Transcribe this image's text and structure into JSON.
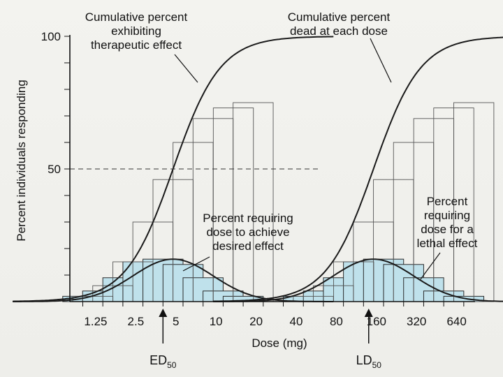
{
  "chart_data": {
    "type": "bar",
    "title": "",
    "xlabel": "Dose (mg)",
    "ylabel": "Percent individuals responding",
    "ylim": [
      0,
      100
    ],
    "yticks": [
      "50",
      "100"
    ],
    "x_ticks": [
      "1.25",
      "2.5",
      "5",
      "10",
      "20",
      "40",
      "80",
      "160",
      "320",
      "640"
    ],
    "x_scale": "log2",
    "grid": false,
    "reference_line": {
      "y": 50,
      "style": "dashed"
    },
    "bins": [
      {
        "dose": 1.0,
        "percent": 2
      },
      {
        "dose": 1.41,
        "percent": 4
      },
      {
        "dose": 2.0,
        "percent": 9
      },
      {
        "dose": 2.83,
        "percent": 15
      },
      {
        "dose": 4.0,
        "percent": 16
      },
      {
        "dose": 5.66,
        "percent": 14
      },
      {
        "dose": 8.0,
        "percent": 9
      },
      {
        "dose": 11.3,
        "percent": 4
      },
      {
        "dose": 16.0,
        "percent": 2
      },
      {
        "dose": 45.3,
        "percent": 2
      },
      {
        "dose": 64.0,
        "percent": 4
      },
      {
        "dose": 90.5,
        "percent": 9
      },
      {
        "dose": 128,
        "percent": 15
      },
      {
        "dose": 181,
        "percent": 16
      },
      {
        "dose": 256,
        "percent": 14
      },
      {
        "dose": 362,
        "percent": 9
      },
      {
        "dose": 512,
        "percent": 4
      },
      {
        "dose": 724,
        "percent": 2
      }
    ],
    "cumulative": [
      {
        "dose": 1.19,
        "percent": 2
      },
      {
        "dose": 1.68,
        "percent": 6
      },
      {
        "dose": 2.38,
        "percent": 15
      },
      {
        "dose": 3.36,
        "percent": 30
      },
      {
        "dose": 4.76,
        "percent": 46
      },
      {
        "dose": 6.73,
        "percent": 60
      },
      {
        "dose": 9.51,
        "percent": 69
      },
      {
        "dose": 13.5,
        "percent": 73
      },
      {
        "dose": 19.0,
        "percent": 75
      },
      {
        "dose": 53.8,
        "percent": 2
      },
      {
        "dose": 76.1,
        "percent": 6
      },
      {
        "dose": 108,
        "percent": 15
      },
      {
        "dose": 152,
        "percent": 30
      },
      {
        "dose": 215,
        "percent": 46
      },
      {
        "dose": 304,
        "percent": 60
      },
      {
        "dose": 431,
        "percent": 69
      },
      {
        "dose": 609,
        "percent": 73
      },
      {
        "dose": 861,
        "percent": 75
      }
    ],
    "curves": [
      {
        "kind": "distribution",
        "center_dose": 4.76,
        "peak": 16
      },
      {
        "kind": "cumulative",
        "center_dose": 4.76,
        "max": 100
      },
      {
        "kind": "distribution",
        "center_dose": 152,
        "peak": 16
      },
      {
        "kind": "cumulative",
        "center_dose": 152,
        "max": 100
      }
    ],
    "annotations": [
      {
        "name": "ann-cum-therapeutic",
        "lines": [
          "Cumulative percent",
          "exhibiting",
          "therapeutic effect"
        ]
      },
      {
        "name": "ann-cum-dead",
        "lines": [
          "Cumulative percent",
          "dead at each dose"
        ]
      },
      {
        "name": "ann-req-effect",
        "lines": [
          "Percent requiring",
          "dose to achieve",
          "desired effect"
        ]
      },
      {
        "name": "ann-req-lethal",
        "lines": [
          "Percent",
          "requiring",
          "dose for a",
          "lethal effect"
        ]
      }
    ],
    "markers": [
      {
        "name": "ed50",
        "label": "ED",
        "sub": "50",
        "dose": 4.0
      },
      {
        "name": "ld50",
        "label": "LD",
        "sub": "50",
        "dose": 140
      }
    ]
  },
  "colors": {
    "bar_fill": "#bfe1eb",
    "bar_stroke": "#2a2a2a",
    "curve": "#1a1a1a",
    "axis": "#111111"
  }
}
